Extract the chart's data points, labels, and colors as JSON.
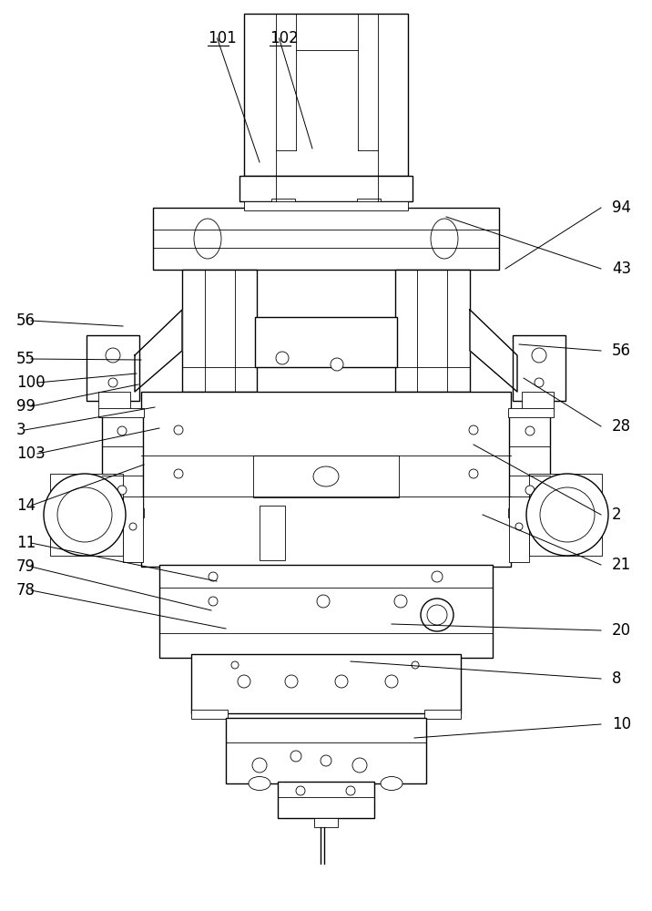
{
  "bg_color": "#ffffff",
  "lc": "#000000",
  "lw_main": 1.0,
  "lw_thin": 0.6,
  "figsize": [
    7.16,
    10.0
  ],
  "dpi": 100,
  "right_labels": [
    [
      "10",
      672,
      795,
      455,
      810
    ],
    [
      "8",
      672,
      745,
      385,
      726
    ],
    [
      "20",
      672,
      692,
      430,
      685
    ],
    [
      "21",
      672,
      620,
      530,
      565
    ],
    [
      "2",
      672,
      565,
      520,
      488
    ],
    [
      "28",
      672,
      468,
      575,
      415
    ],
    [
      "56",
      672,
      385,
      570,
      378
    ],
    [
      "43",
      672,
      295,
      490,
      238
    ],
    [
      "94",
      672,
      228,
      555,
      295
    ]
  ],
  "left_labels": [
    [
      "78",
      18,
      648,
      248,
      690
    ],
    [
      "79",
      18,
      622,
      232,
      670
    ],
    [
      "11",
      18,
      596,
      238,
      638
    ],
    [
      "14",
      18,
      555,
      158,
      510
    ],
    [
      "103",
      18,
      498,
      175,
      470
    ],
    [
      "3",
      18,
      472,
      170,
      447
    ],
    [
      "99",
      18,
      446,
      152,
      422
    ],
    [
      "100",
      18,
      420,
      150,
      410
    ],
    [
      "55",
      18,
      394,
      155,
      395
    ],
    [
      "56",
      18,
      352,
      135,
      358
    ]
  ],
  "bottom_labels": [
    [
      "101",
      228,
      42,
      285,
      178
    ],
    [
      "102",
      296,
      42,
      343,
      163
    ]
  ]
}
